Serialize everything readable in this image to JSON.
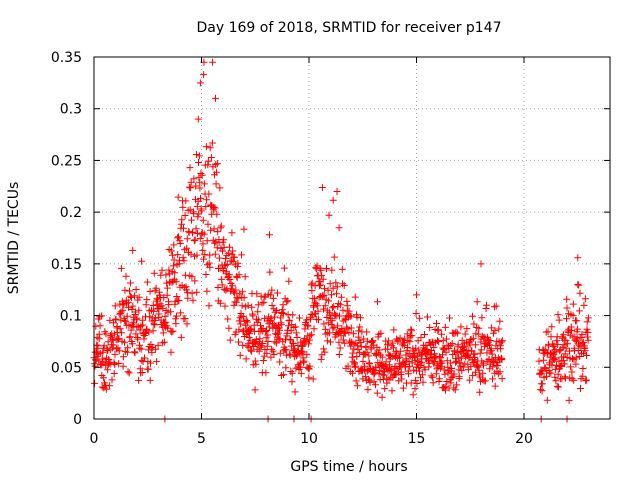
{
  "chart_data": {
    "type": "scatter",
    "title": "Day 169 of 2018, SRMTID for receiver p147",
    "xlabel": "GPS time / hours",
    "ylabel": "SRMTID / TECUs",
    "xlim": [
      0,
      24
    ],
    "ylim": [
      0,
      0.35
    ],
    "xticks": [
      0,
      5,
      10,
      15,
      20
    ],
    "xtick_labels": [
      "0",
      "5",
      "10",
      "15",
      "20"
    ],
    "yticks": [
      0,
      0.05,
      0.1,
      0.15,
      0.2,
      0.25,
      0.3,
      0.35
    ],
    "ytick_labels": [
      "0",
      "0.05",
      "0.1",
      "0.15",
      "0.2",
      "0.25",
      "0.3",
      "0.35"
    ],
    "grid": true,
    "marker": "+",
    "color": "#ff0000",
    "profile": [
      [
        0.0,
        0.065,
        0.015
      ],
      [
        0.5,
        0.06,
        0.018
      ],
      [
        1.0,
        0.075,
        0.02
      ],
      [
        1.5,
        0.095,
        0.025
      ],
      [
        2.0,
        0.085,
        0.02
      ],
      [
        2.5,
        0.085,
        0.02
      ],
      [
        3.0,
        0.095,
        0.022
      ],
      [
        3.5,
        0.11,
        0.025
      ],
      [
        4.0,
        0.145,
        0.03
      ],
      [
        4.5,
        0.17,
        0.04
      ],
      [
        5.0,
        0.21,
        0.05
      ],
      [
        5.5,
        0.22,
        0.045
      ],
      [
        6.0,
        0.14,
        0.03
      ],
      [
        6.5,
        0.12,
        0.025
      ],
      [
        7.0,
        0.1,
        0.025
      ],
      [
        7.5,
        0.07,
        0.02
      ],
      [
        8.0,
        0.085,
        0.02
      ],
      [
        8.5,
        0.09,
        0.02
      ],
      [
        9.0,
        0.075,
        0.02
      ],
      [
        9.5,
        0.065,
        0.015
      ],
      [
        10.0,
        0.08,
        0.02
      ],
      [
        10.5,
        0.12,
        0.03
      ],
      [
        11.0,
        0.11,
        0.025
      ],
      [
        11.5,
        0.09,
        0.02
      ],
      [
        12.0,
        0.08,
        0.02
      ],
      [
        12.5,
        0.06,
        0.015
      ],
      [
        13.0,
        0.055,
        0.015
      ],
      [
        14.0,
        0.05,
        0.015
      ],
      [
        15.0,
        0.06,
        0.015
      ],
      [
        16.0,
        0.06,
        0.015
      ],
      [
        17.0,
        0.06,
        0.015
      ],
      [
        18.0,
        0.065,
        0.015
      ],
      [
        19.0,
        0.06,
        0.015
      ]
    ],
    "profile_late": [
      [
        20.7,
        0.05,
        0.015
      ],
      [
        21.5,
        0.06,
        0.018
      ],
      [
        22.0,
        0.075,
        0.025
      ],
      [
        23.0,
        0.065,
        0.02
      ]
    ],
    "point_spacing_hours": 0.014,
    "annotated_points": [
      {
        "x": 5.1,
        "y": 0.333
      },
      {
        "x": 4.95,
        "y": 0.325
      },
      {
        "x": 5.65,
        "y": 0.31
      },
      {
        "x": 4.85,
        "y": 0.29
      },
      {
        "x": 11.3,
        "y": 0.22
      },
      {
        "x": 11.4,
        "y": 0.185
      },
      {
        "x": 1.8,
        "y": 0.163
      },
      {
        "x": 18.0,
        "y": 0.15
      },
      {
        "x": 15.0,
        "y": 0.12
      },
      {
        "x": 22.5,
        "y": 0.13
      }
    ],
    "zero_points_x": [
      3.3,
      8.1,
      9.3,
      10.1,
      20.8,
      22.0
    ]
  }
}
